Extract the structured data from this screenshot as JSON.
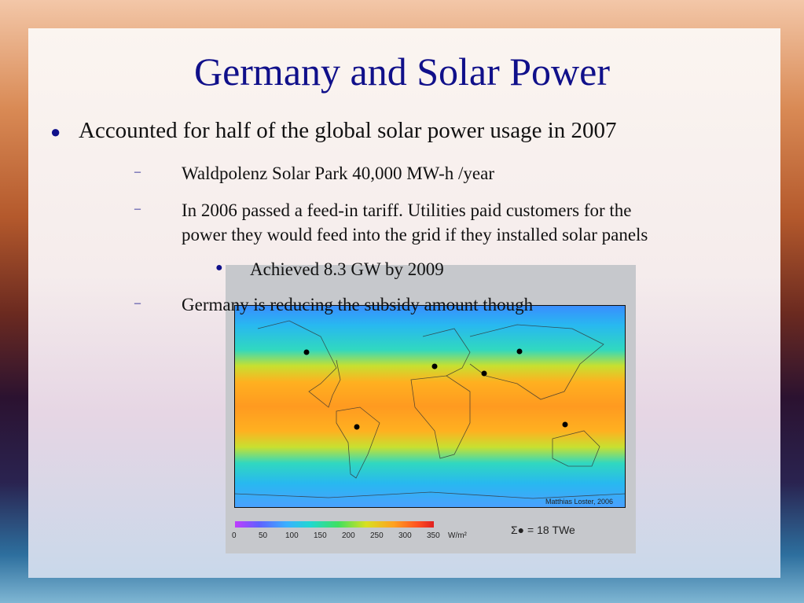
{
  "title": "Germany and Solar Power",
  "bullets": {
    "main": "Accounted for half of the global solar power usage in 2007",
    "sub1": "Waldpolenz Solar Park 40,000 MW-h /year",
    "sub2_line1": "In 2006  passed a feed-in tariff. Utilities paid customers for the",
    "sub2_line2": "power they would feed into the grid if they installed solar panels",
    "subsub": "Achieved 8.3 GW by 2009",
    "sub3": "Germany is reducing the subsidy amount though"
  },
  "figure": {
    "credit": "Matthias Loster, 2006",
    "legend_ticks": [
      "0",
      "50",
      "100",
      "150",
      "200",
      "250",
      "300",
      "350"
    ],
    "legend_unit": "W/m²",
    "sigma_label": "Σ● = 18 TWe"
  },
  "colors": {
    "title": "#10108a"
  }
}
